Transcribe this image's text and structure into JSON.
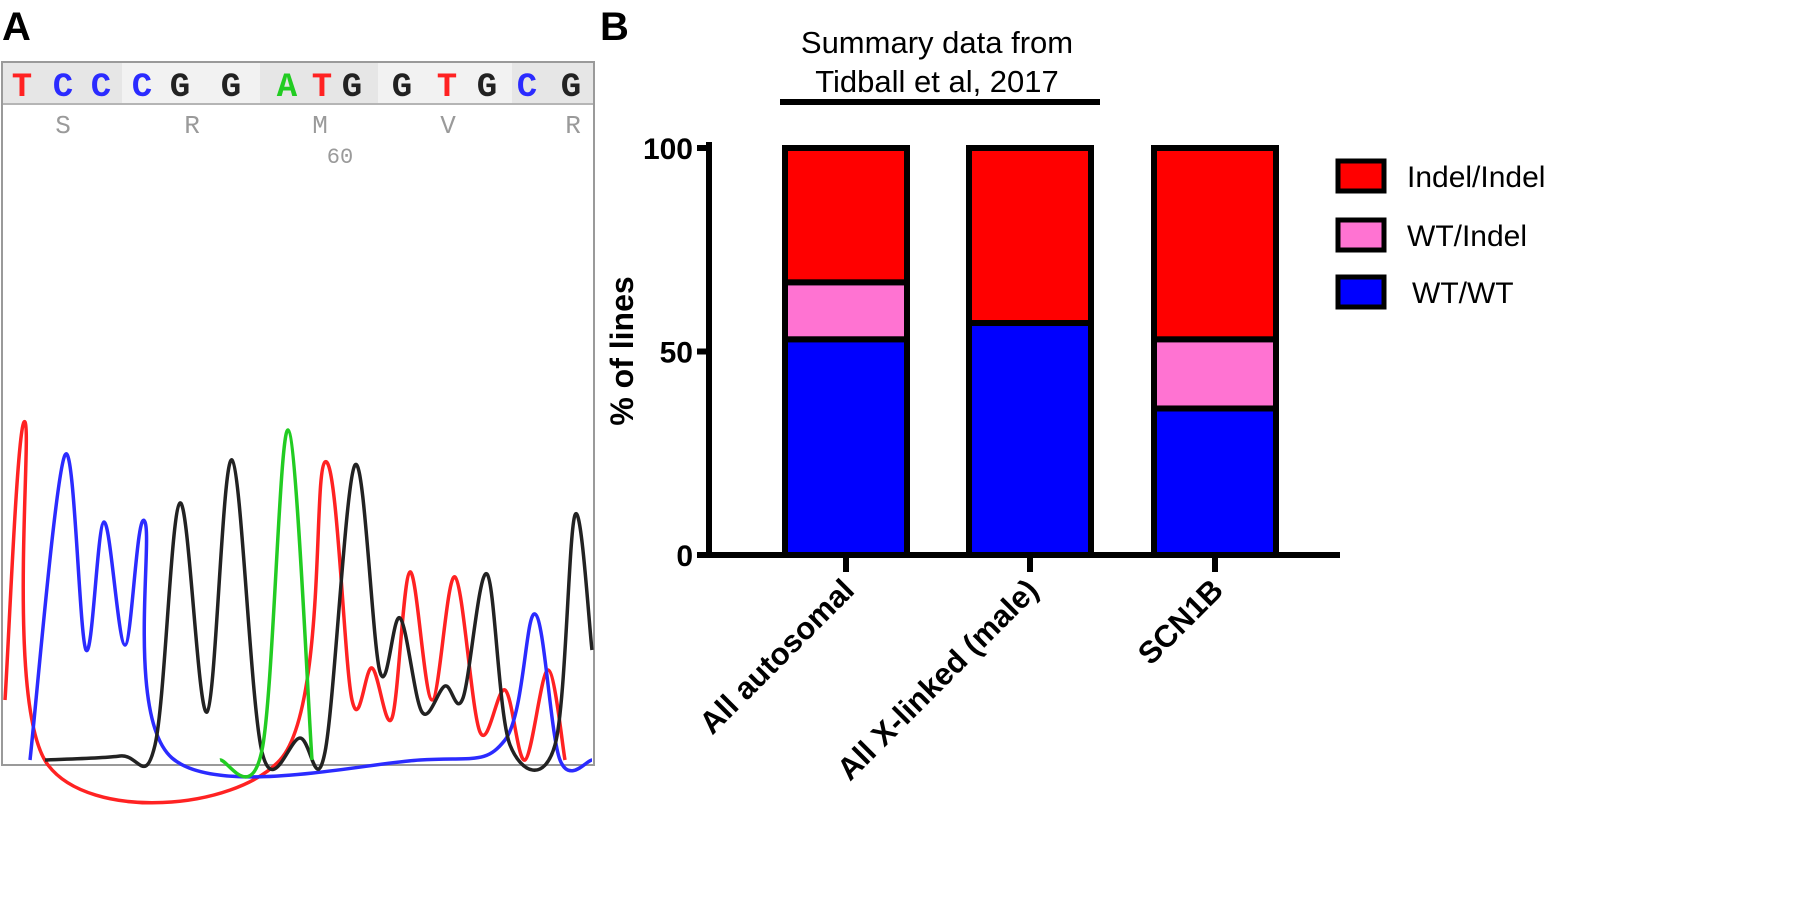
{
  "panel_a": {
    "label": "A",
    "bases": [
      "T",
      "C",
      "C",
      "C",
      "G",
      "G",
      "A",
      "T",
      "G",
      "G",
      "T",
      "G",
      "C",
      "G"
    ],
    "ambiguity_codes": [
      "S",
      "R",
      "M",
      "V",
      "R"
    ],
    "position_number": "60",
    "base_colors": {
      "A": "#22cc22",
      "C": "#2b2bff",
      "G": "#222222",
      "T": "#ff2222"
    }
  },
  "panel_b": {
    "label": "B",
    "summary_title": [
      "Summary data from",
      "Tidball et al, 2017"
    ]
  },
  "chart_data": {
    "type": "bar",
    "stacked": true,
    "categories": [
      "All autosomal",
      "All X-linked (male)",
      "SCN1B"
    ],
    "series": [
      {
        "name": "WT/WT",
        "color": "#0000ff",
        "values": [
          53,
          57,
          36
        ]
      },
      {
        "name": "WT/Indel",
        "color": "#ff73d2",
        "values": [
          14,
          0,
          17
        ]
      },
      {
        "name": "Indel/Indel",
        "color": "#ff0000",
        "values": [
          33,
          43,
          47
        ]
      }
    ],
    "legend_order": [
      "Indel/Indel",
      "WT/Indel",
      "WT/WT"
    ],
    "legend_position": "right",
    "ylabel": "% of lines",
    "xlabel": "",
    "ylim": [
      0,
      100
    ],
    "yticks": [
      0,
      50,
      100
    ],
    "grid": false
  }
}
